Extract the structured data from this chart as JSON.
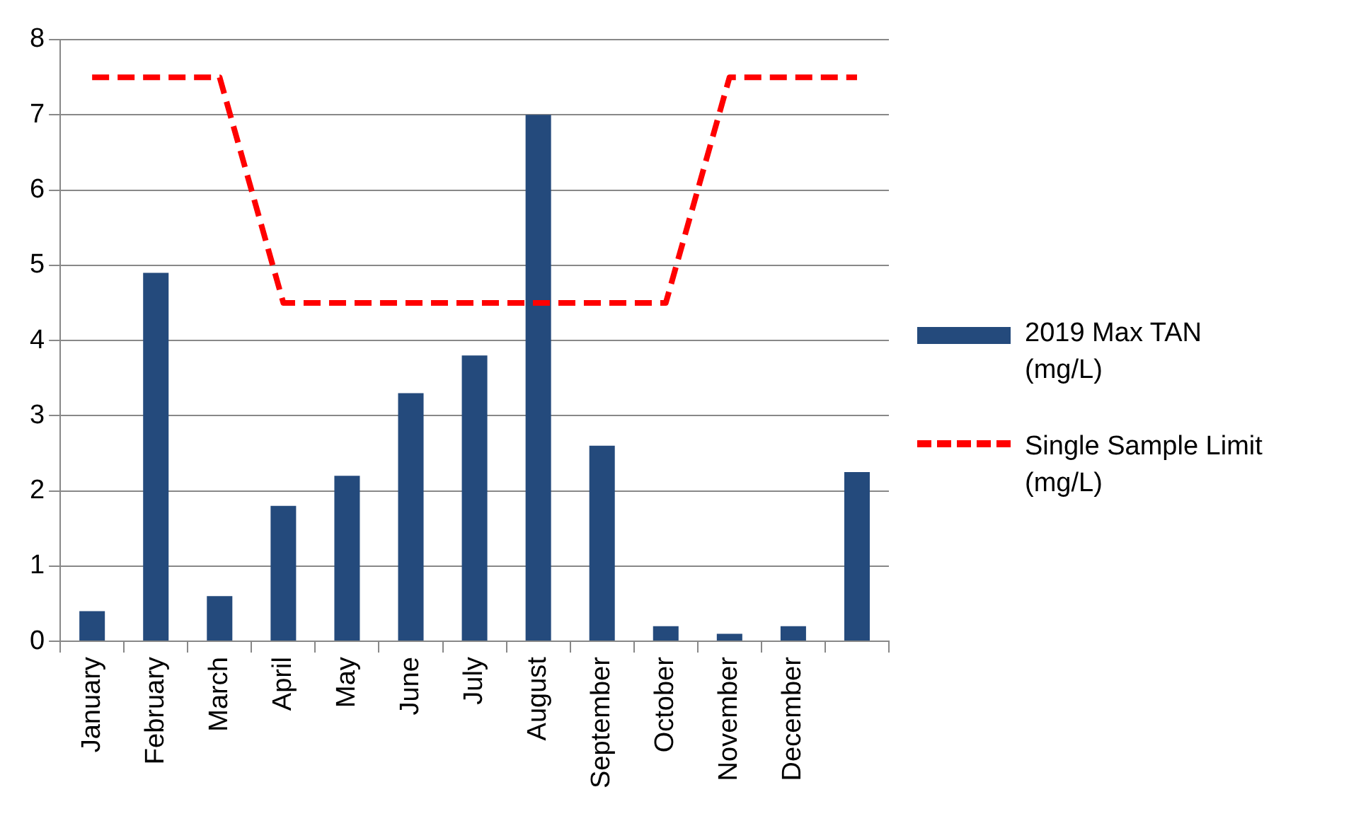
{
  "chart_data": {
    "type": "bar",
    "categories": [
      "January",
      "February",
      "March",
      "April",
      "May",
      "June",
      "July",
      "August",
      "September",
      "October",
      "November",
      "December",
      null
    ],
    "series": [
      {
        "name": "2019 Max TAN (mg/L)",
        "color": "#244a7c",
        "values": [
          0.4,
          4.9,
          0.6,
          1.8,
          2.2,
          3.3,
          3.8,
          7.0,
          2.6,
          0.2,
          0.1,
          0.2,
          2.25
        ]
      },
      {
        "name": "Single Sample Limit (mg/L)",
        "type": "line",
        "color": "#ff0000",
        "line_style": "dashed",
        "marker": "none",
        "values": [
          7.5,
          7.5,
          7.5,
          4.5,
          4.5,
          4.5,
          4.5,
          4.5,
          4.5,
          4.5,
          7.5,
          7.5,
          7.5
        ]
      }
    ],
    "ylim": [
      0,
      8
    ],
    "yticks": [
      0,
      1,
      2,
      3,
      4,
      5,
      6,
      7,
      8
    ],
    "grid": "y",
    "legend": "right"
  }
}
